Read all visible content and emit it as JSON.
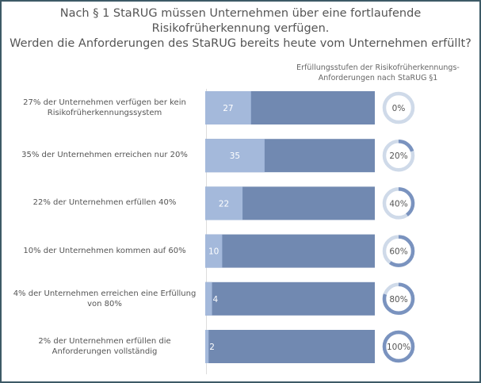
{
  "chart_data": {
    "type": "bar",
    "title_lines": [
      "Nach § 1 StaRUG müssen Unternehmen über eine fortlaufende",
      "Risikofrüherkennung verfügen.",
      "Werden die Anforderungen des StaRUG bereits heute vom Unternehmen erfüllt?"
    ],
    "legend_lines": [
      "Erfüllungsstufen  der Risikofrüherkennungs-",
      "Anforderungen nach StaRUG §1"
    ],
    "categories": [
      "27% der Unternehmen verfügen ber kein Risikofrüherkennungssystem",
      "35% der Unternehmen erreichen nur 20%",
      "22% der Unternehmen erfüllen 40%",
      "10% der Unternehmen kommen auf 60%",
      "4% der Unternehmen erreichen eine Erfüllung von 80%",
      "2% der Unternehmen erfüllen die Anforderungen vollständig"
    ],
    "values": [
      27,
      35,
      22,
      10,
      4,
      2
    ],
    "value_labels": [
      "27",
      "35",
      "22",
      "10",
      "4",
      "2"
    ],
    "xlim": [
      0,
      100
    ],
    "fulfillment_levels": [
      0,
      20,
      40,
      60,
      80,
      100
    ],
    "fulfillment_labels": [
      "0%",
      "20%",
      "40%",
      "60%",
      "80%",
      "100%"
    ],
    "colors": {
      "value": "#a4b9db",
      "remainder": "#7189b1",
      "ring_bg": "#cfdae9",
      "ring_fg": "#7a93bf"
    }
  }
}
